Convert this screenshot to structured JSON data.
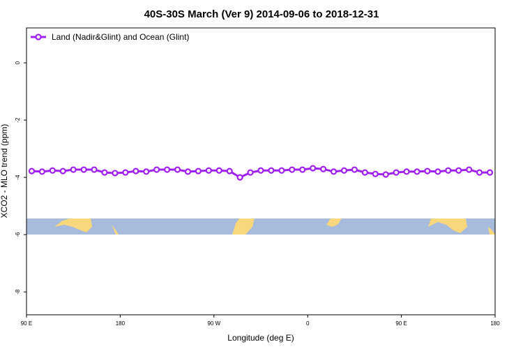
{
  "chart_data": {
    "type": "line",
    "title": "40S-30S March (Ver 9)   2014-09-06 to 2018-12-31",
    "x_label": "Longitude (deg E)",
    "y_label": "XCO2 - MLO trend (ppm)",
    "x": [
      95,
      105,
      115,
      125,
      135,
      145,
      155,
      165,
      175,
      185,
      195,
      205,
      215,
      225,
      235,
      245,
      255,
      265,
      275,
      285,
      295,
      305,
      315,
      325,
      335,
      345,
      355,
      365,
      375,
      385,
      395,
      405,
      415,
      425,
      435,
      445,
      455,
      465,
      475,
      485,
      495,
      505,
      515,
      525,
      535
    ],
    "series": [
      {
        "name": "Land (Nadir&Glint) and Ocean (Glint)",
        "color": "#a020f0",
        "values": [
          -3.78,
          -3.8,
          -3.76,
          -3.78,
          -3.73,
          -3.73,
          -3.73,
          -3.83,
          -3.85,
          -3.83,
          -3.78,
          -3.8,
          -3.73,
          -3.73,
          -3.73,
          -3.8,
          -3.78,
          -3.76,
          -3.76,
          -3.78,
          -4.0,
          -3.83,
          -3.76,
          -3.76,
          -3.76,
          -3.73,
          -3.73,
          -3.68,
          -3.71,
          -3.8,
          -3.76,
          -3.73,
          -3.83,
          -3.88,
          -3.9,
          -3.83,
          -3.8,
          -3.8,
          -3.78,
          -3.8,
          -3.76,
          -3.76,
          -3.73,
          -3.83,
          -3.83
        ]
      }
    ],
    "xlim": [
      90,
      540
    ],
    "xticks": [
      {
        "value": 90,
        "label": "90 E"
      },
      180,
      {
        "value": 270,
        "label": "90 W"
      },
      {
        "value": 360,
        "label": "0"
      },
      {
        "value": 450,
        "label": "90 E"
      },
      {
        "value": 540,
        "label": "180"
      }
    ],
    "ylim": [
      -8.8,
      1.22
    ],
    "yticks": [
      0,
      -2,
      -4,
      -6,
      -8
    ],
    "legend_position": "top-left"
  }
}
